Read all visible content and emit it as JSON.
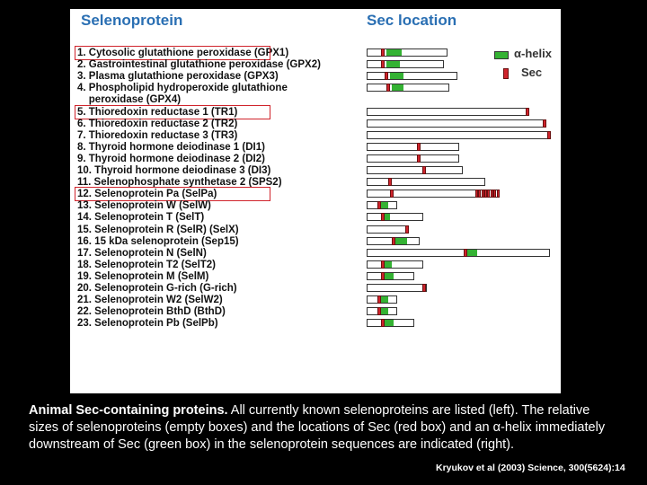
{
  "headers": {
    "left": "Selenoprotein",
    "right": "Sec location"
  },
  "legend": {
    "helix": "α-helix",
    "sec": "Sec"
  },
  "colors": {
    "sec": "#d0242c",
    "helix": "#34b233",
    "header": "#2a6fb3"
  },
  "proteins": [
    {
      "lines": [
        "1. Cytosolic glutathione peroxidase (GPX1)"
      ],
      "length": 0.43,
      "sec": 0.07,
      "helix": [
        0.1,
        0.18
      ],
      "highlight": true
    },
    {
      "lines": [
        "2. Gastrointestinal glutathione peroxidase (GPX2)"
      ],
      "length": 0.41,
      "sec": 0.07,
      "helix": [
        0.1,
        0.17
      ]
    },
    {
      "lines": [
        "3. Plasma glutathione peroxidase (GPX3)"
      ],
      "length": 0.48,
      "sec": 0.09,
      "helix": [
        0.12,
        0.19
      ]
    },
    {
      "lines": [
        "4. Phospholipid hydroperoxide glutathione",
        "   peroxidase (GPX4)"
      ],
      "length": 0.44,
      "sec": 0.1,
      "helix": [
        0.13,
        0.19
      ]
    },
    {
      "lines": [
        "5. Thioredoxin reductase 1 (TR1)"
      ],
      "length": 0.86,
      "sec": 0.84,
      "highlight": true
    },
    {
      "lines": [
        "6. Thioredoxin reductase 2 (TR2)"
      ],
      "length": 0.94,
      "sec": 0.93
    },
    {
      "lines": [
        "7. Thioredoxin reductase 3 (TR3)"
      ],
      "length": 0.97,
      "sec": 0.95
    },
    {
      "lines": [
        "8. Thyroid hormone deiodinase 1 (DI1)"
      ],
      "length": 0.49,
      "sec": 0.26
    },
    {
      "lines": [
        "9. Thyroid hormone deiodinase 2 (DI2)"
      ],
      "length": 0.49,
      "sec": 0.26
    },
    {
      "lines": [
        "10. Thyroid hormone deiodinase 3 (DI3)"
      ],
      "length": 0.51,
      "sec": 0.29
    },
    {
      "lines": [
        "11. Selenophosphate synthetase 2 (SPS2)"
      ],
      "length": 0.63,
      "sec": 0.11
    },
    {
      "lines": [
        "12. Selenoprotein Pa (SelPa)"
      ],
      "length": 0.7,
      "sec": 0.12,
      "secCluster": [
        0.57,
        0.7
      ],
      "highlight": true
    },
    {
      "lines": [
        "13. Selenoprotein W (SelW)"
      ],
      "length": 0.16,
      "sec": 0.05,
      "helix": [
        0.06,
        0.11
      ]
    },
    {
      "lines": [
        "14. Selenoprotein T (SelT)"
      ],
      "length": 0.3,
      "sec": 0.07,
      "helix": [
        0.08,
        0.12
      ]
    },
    {
      "lines": [
        "15. Selenoprotein R (SelR) (SelX)"
      ],
      "length": 0.22,
      "sec": 0.2
    },
    {
      "lines": [
        "16. 15 kDa selenoprotein (Sep15)"
      ],
      "length": 0.28,
      "sec": 0.13,
      "helix": [
        0.14,
        0.21
      ]
    },
    {
      "lines": [
        "17. Selenoprotein N (SelN)"
      ],
      "length": 0.97,
      "sec": 0.51,
      "helix": [
        0.53,
        0.58
      ]
    },
    {
      "lines": [
        "18. Selenoprotein T2 (SelT2)"
      ],
      "length": 0.3,
      "sec": 0.07,
      "helix": [
        0.08,
        0.13
      ]
    },
    {
      "lines": [
        "19. Selenoprotein M (SelM)"
      ],
      "length": 0.25,
      "sec": 0.07,
      "helix": [
        0.08,
        0.14
      ]
    },
    {
      "lines": [
        "20. Selenoprotein G-rich (G-rich)"
      ],
      "length": 0.32,
      "sec": 0.29
    },
    {
      "lines": [
        "21. Selenoprotein W2 (SelW2)"
      ],
      "length": 0.16,
      "sec": 0.05,
      "helix": [
        0.06,
        0.11
      ]
    },
    {
      "lines": [
        "22. Selenoprotein BthD (BthD)"
      ],
      "length": 0.16,
      "sec": 0.05,
      "helix": [
        0.06,
        0.11
      ]
    },
    {
      "lines": [
        "23. Selenoprotein Pb (SelPb)"
      ],
      "length": 0.25,
      "sec": 0.07,
      "helix": [
        0.08,
        0.14
      ]
    }
  ],
  "caption": {
    "bold": "Animal Sec-containing proteins.",
    "text": " All currently known selenoproteins are listed (left). The relative sizes of selenoproteins (empty boxes) and the locations of Sec (red box) and an α-helix immediately downstream of Sec (green box) in the selenoprotein sequences are indicated (right)."
  },
  "citation": "Kryukov et al (2003) Science, 300(5624):14"
}
